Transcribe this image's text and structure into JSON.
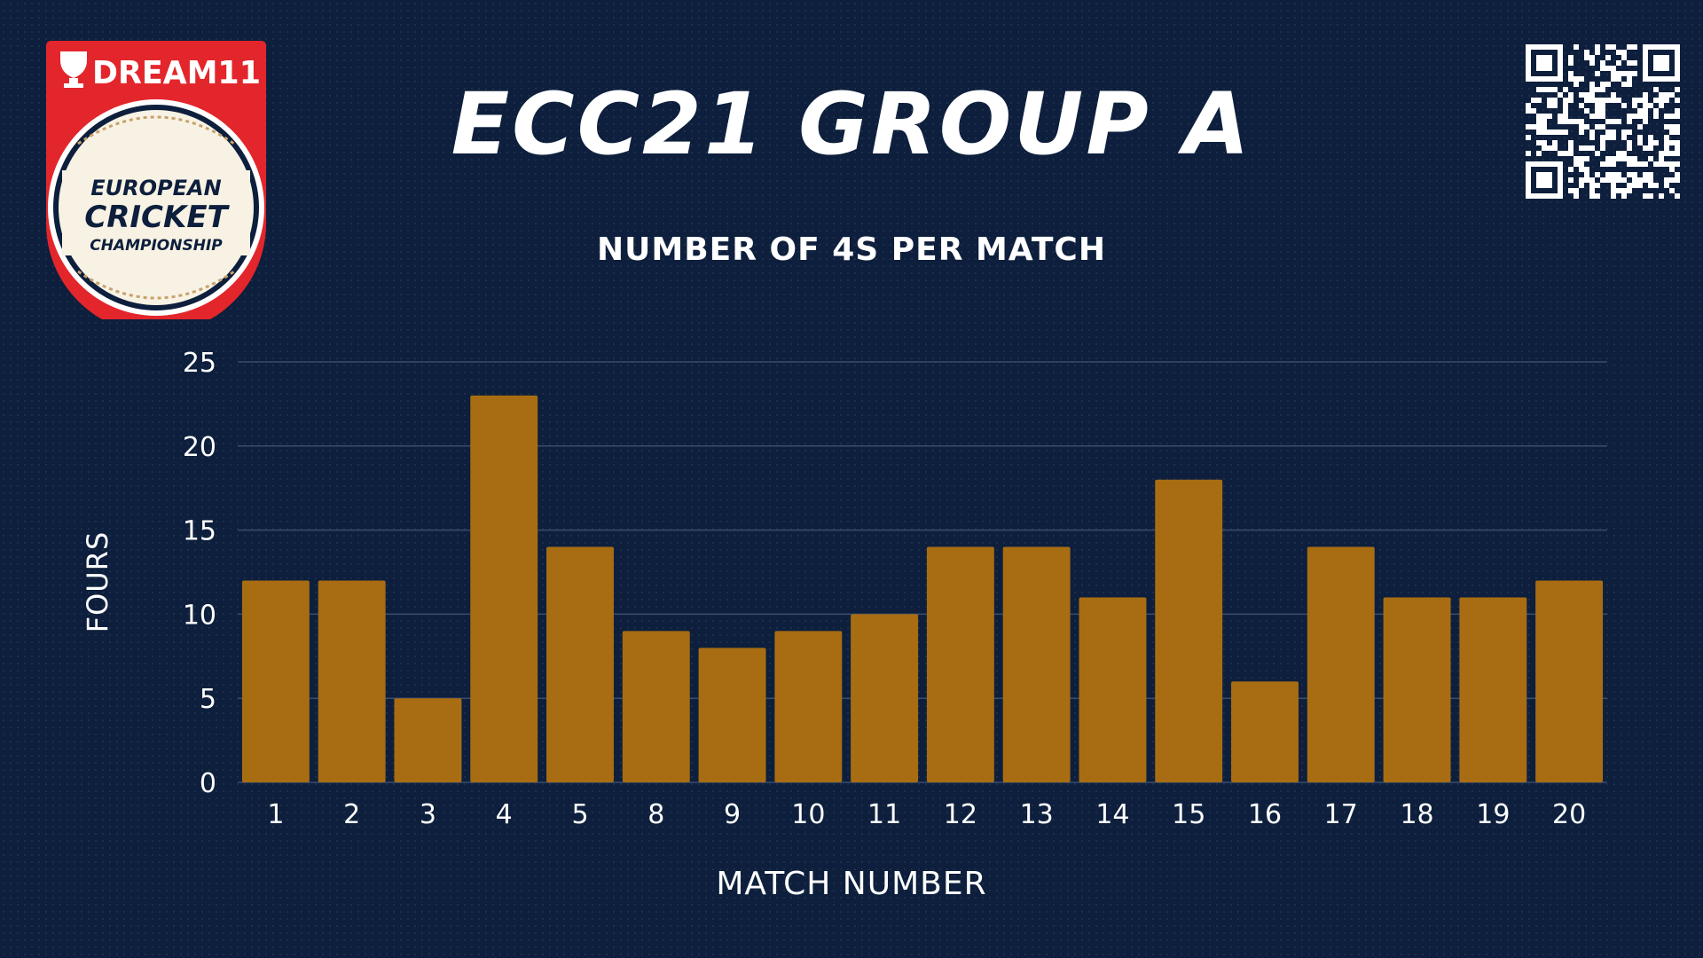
{
  "header": {
    "title": "ECC21 GROUP A"
  },
  "logo": {
    "brand": "DREAM11",
    "line1": "EUROPEAN",
    "line2": "CRICKET",
    "line3": "CHAMPIONSHIP"
  },
  "icons": {
    "logo": "dream11-ecc-logo",
    "qr": "qr-code-icon"
  },
  "colors": {
    "background": "#0d1f3c",
    "bar": "#a86d12",
    "logo_red": "#e3262b",
    "text": "#ffffff"
  },
  "chart_data": {
    "type": "bar",
    "title": "NUMBER OF 4S PER MATCH",
    "xlabel": "MATCH NUMBER",
    "ylabel": "FOURS",
    "categories": [
      "1",
      "2",
      "3",
      "4",
      "5",
      "8",
      "9",
      "10",
      "11",
      "12",
      "13",
      "14",
      "15",
      "16",
      "17",
      "18",
      "19",
      "20"
    ],
    "values": [
      12,
      12,
      5,
      23,
      14,
      9,
      8,
      9,
      10,
      14,
      14,
      11,
      18,
      6,
      14,
      11,
      11,
      12
    ],
    "ylim": [
      0,
      25
    ],
    "yticks": [
      0,
      5,
      10,
      15,
      20,
      25
    ],
    "grid": true,
    "legend": "none"
  }
}
